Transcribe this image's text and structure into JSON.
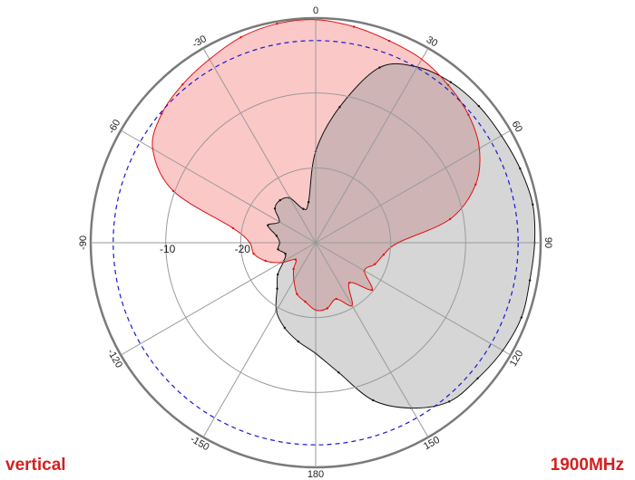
{
  "labels": {
    "polarization": "vertical",
    "frequency": "1900MHz"
  },
  "colors": {
    "series_a_fill": "#fbc8c8",
    "series_a_line": "#e01010",
    "series_b_fill": "#d6d6d6",
    "series_b_line": "#111111",
    "overlap_fill": "#ceb4b4",
    "reference_ring": "#1a1ad6",
    "grid": "#9a9a9a",
    "outer_ring": "#7a7a7a"
  },
  "chart_data": {
    "type": "polar",
    "title": "",
    "angle_ticks": [
      {
        "deg": 0,
        "label": "0"
      },
      {
        "deg": 30,
        "label": "30"
      },
      {
        "deg": 60,
        "label": "60"
      },
      {
        "deg": 90,
        "label": "90"
      },
      {
        "deg": 120,
        "label": "120"
      },
      {
        "deg": 150,
        "label": "150"
      },
      {
        "deg": 180,
        "label": "180"
      },
      {
        "deg": -150,
        "label": "-150"
      },
      {
        "deg": -120,
        "label": "-120"
      },
      {
        "deg": -90,
        "label": "-90"
      },
      {
        "deg": -60,
        "label": "-60"
      },
      {
        "deg": -30,
        "label": "-30"
      }
    ],
    "radial_ticks": [
      {
        "value": -10,
        "label": "-10"
      },
      {
        "value": -20,
        "label": "-20"
      }
    ],
    "radial_range_db": [
      -30,
      0
    ],
    "grid_rings_db": [
      -20,
      -10,
      0
    ],
    "reference_ring_db": -3,
    "series": [
      {
        "color": "#e01010",
        "angles_deg": [
          0,
          10,
          20,
          30,
          40,
          50,
          60,
          70,
          80,
          90,
          100,
          110,
          120,
          130,
          140,
          150,
          160,
          170,
          180,
          190,
          200,
          210,
          220,
          230,
          240,
          250,
          260,
          270,
          280,
          290,
          300,
          310,
          320,
          330,
          340,
          350
        ],
        "values_db": [
          -0.2,
          -0.7,
          -1.3,
          -1.7,
          -2.5,
          -3.4,
          -4.8,
          -7.3,
          -11.8,
          -19.0,
          -20.8,
          -21.6,
          -22.5,
          -20.2,
          -23.0,
          -20.3,
          -22.0,
          -21.1,
          -21.0,
          -22.0,
          -22.7,
          -24.2,
          -25.4,
          -26.5,
          -24.7,
          -22.9,
          -21.6,
          -21.2,
          -18.8,
          -9.8,
          -4.9,
          -3.2,
          -2.4,
          -1.7,
          -0.8,
          -0.3
        ]
      },
      {
        "color": "#111111",
        "angles_deg": [
          0,
          10,
          20,
          30,
          40,
          50,
          60,
          70,
          80,
          90,
          100,
          110,
          120,
          130,
          140,
          150,
          160,
          170,
          180,
          190,
          200,
          210,
          220,
          230,
          240,
          250,
          260,
          270,
          280,
          290,
          300,
          310,
          320,
          330,
          340,
          350
        ],
        "values_db": [
          -17.8,
          -11.6,
          -5.1,
          -2.9,
          -2.0,
          -1.6,
          -1.4,
          -1.0,
          -0.6,
          -0.8,
          -1.0,
          -0.8,
          -1.2,
          -1.8,
          -2.3,
          -4.5,
          -7.6,
          -12.4,
          -15.2,
          -16.6,
          -17.9,
          -19.5,
          -22.0,
          -23.4,
          -25.1,
          -25.7,
          -24.9,
          -25.2,
          -24.7,
          -23.2,
          -24.4,
          -22.9,
          -22.6,
          -23.1,
          -25.2,
          -24.5
        ]
      }
    ]
  }
}
